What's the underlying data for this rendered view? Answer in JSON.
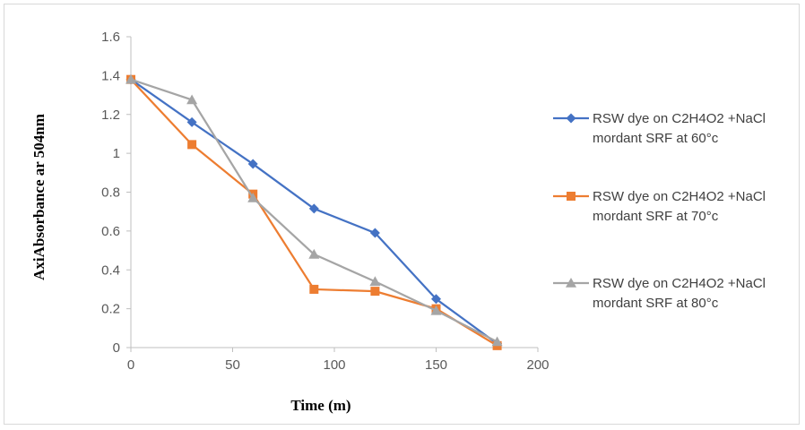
{
  "chart_data": {
    "type": "line",
    "title": "",
    "xlabel": "Time (m)",
    "ylabel": "AxiAbsorbance ar 504nm",
    "xlim": [
      0,
      200
    ],
    "ylim": [
      0,
      1.6
    ],
    "x_ticks": [
      "0",
      "50",
      "100",
      "150",
      "200"
    ],
    "y_ticks": [
      "0",
      "0.2",
      "0.4",
      "0.6",
      "0.8",
      "1",
      "1.2",
      "1.4",
      "1.6"
    ],
    "grid": false,
    "legend_position": "right",
    "series": [
      {
        "name_line1": "RSW dye on C2H4O2 +NaCl",
        "name_line2": "mordant SRF at 60°c",
        "color": "#4472c4",
        "marker": "diamond",
        "points": [
          [
            0,
            1.38
          ],
          [
            30,
            1.16
          ],
          [
            60,
            0.945
          ],
          [
            90,
            0.715
          ],
          [
            120,
            0.59
          ],
          [
            150,
            0.25
          ],
          [
            180,
            0.02
          ]
        ]
      },
      {
        "name_line1": "RSW dye on C2H4O2 +NaCl",
        "name_line2": "mordant SRF at 70°c",
        "color": "#ed7d31",
        "marker": "square",
        "points": [
          [
            0,
            1.38
          ],
          [
            30,
            1.045
          ],
          [
            60,
            0.79
          ],
          [
            90,
            0.3
          ],
          [
            120,
            0.29
          ],
          [
            150,
            0.2
          ],
          [
            180,
            0.01
          ]
        ]
      },
      {
        "name_line1": "RSW dye on C2H4O2 +NaCl",
        "name_line2": "mordant SRF at 80°c",
        "color": "#a5a5a5",
        "marker": "triangle",
        "points": [
          [
            0,
            1.38
          ],
          [
            30,
            1.275
          ],
          [
            60,
            0.77
          ],
          [
            90,
            0.48
          ],
          [
            120,
            0.34
          ],
          [
            150,
            0.19
          ],
          [
            180,
            0.03
          ]
        ]
      }
    ]
  }
}
